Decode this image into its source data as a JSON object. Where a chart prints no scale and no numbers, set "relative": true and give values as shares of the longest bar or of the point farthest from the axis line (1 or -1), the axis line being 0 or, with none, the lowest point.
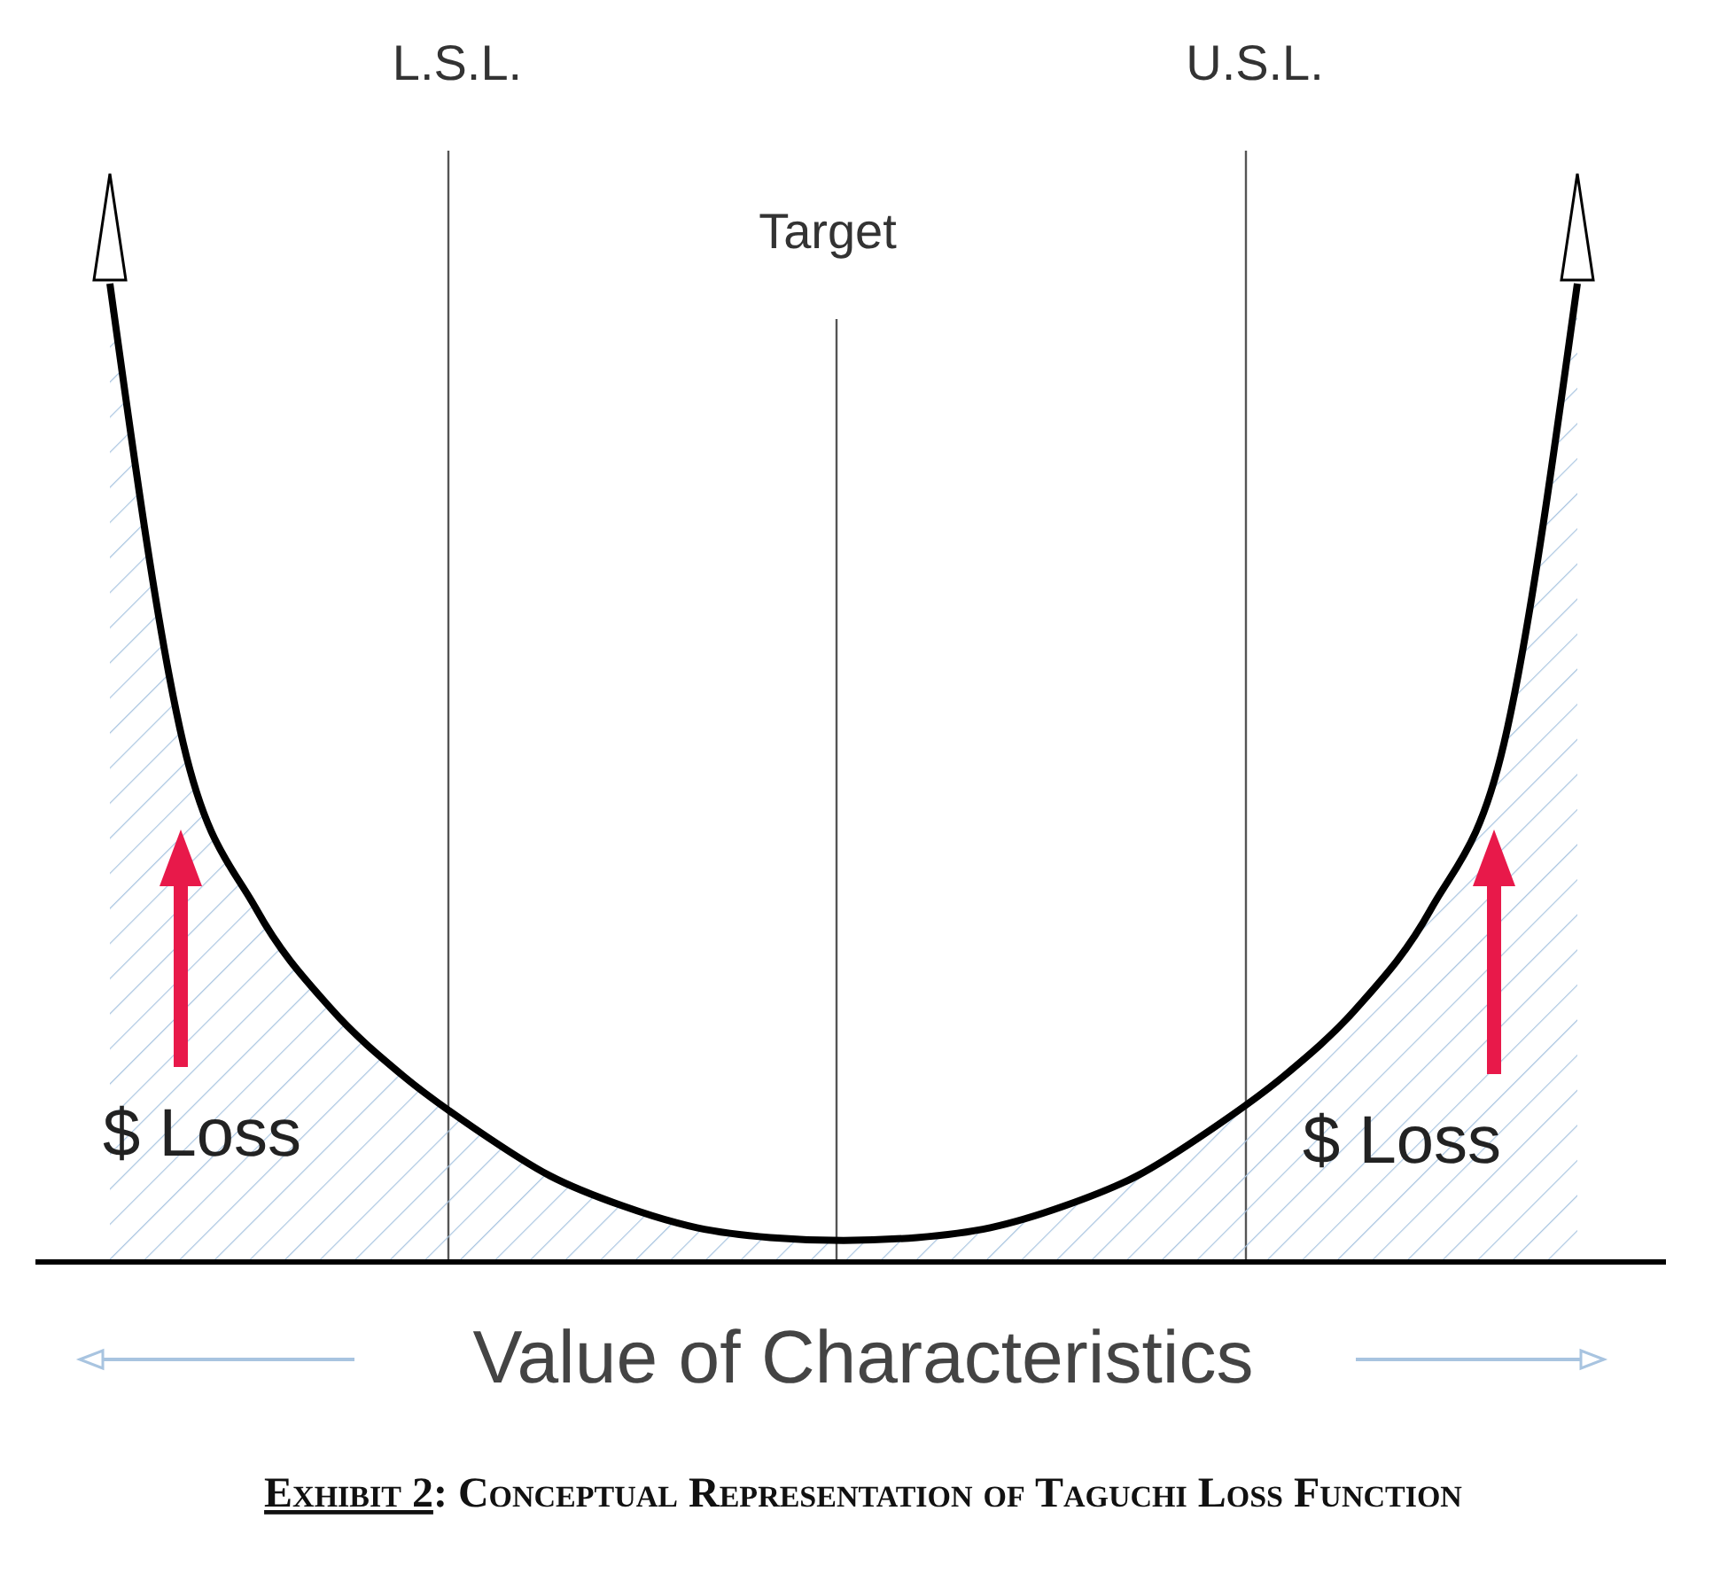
{
  "chart_data": {
    "type": "area",
    "relative": true,
    "title": "Exhibit 2: Conceptual Representation of Taguchi Loss Function",
    "xlabel": "Value of Characteristics",
    "categories": [
      null,
      null,
      null,
      null,
      null,
      null,
      null,
      null,
      null,
      null,
      null,
      null,
      null,
      null,
      null,
      null,
      null,
      null,
      null,
      null,
      null
    ],
    "series": [
      {
        "color": "#000000",
        "values": [
          1.0,
          0.53,
          0.36,
          0.26,
          0.19,
          0.135,
          0.088,
          0.057,
          0.035,
          0.025,
          0.022,
          0.025,
          0.035,
          0.057,
          0.088,
          0.135,
          0.19,
          0.26,
          0.36,
          0.53,
          1.0
        ]
      }
    ],
    "annotations": [
      "L.S.L.",
      "Target",
      "U.S.L.",
      "$ Loss",
      "$ Loss"
    ]
  }
}
